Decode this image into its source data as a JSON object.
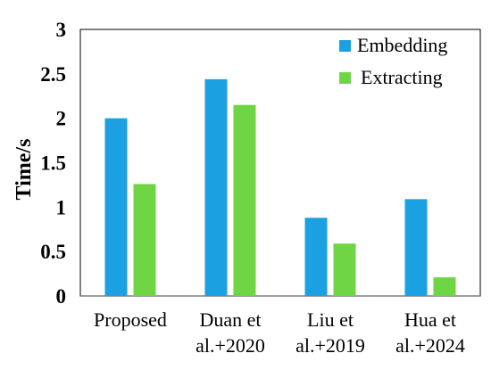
{
  "chart_data": {
    "type": "bar",
    "categories": [
      [
        "Proposed"
      ],
      [
        "Duan et",
        "al.+2020"
      ],
      [
        "Liu et",
        "al.+2019"
      ],
      [
        "Hua et",
        "al.+2024"
      ]
    ],
    "series": [
      {
        "name": "Embedding",
        "color": "#1BA1E2",
        "values": [
          2.0,
          2.44,
          0.88,
          1.09
        ]
      },
      {
        "name": "Extracting",
        "color": "#70D544",
        "values": [
          1.26,
          2.15,
          0.59,
          0.21
        ]
      }
    ],
    "title": "",
    "xlabel": "",
    "ylabel": "Time/s",
    "ylim": [
      0,
      3
    ],
    "yticks": [
      "0",
      "0.5",
      "1",
      "1.5",
      "2",
      "2.5",
      "3"
    ],
    "grid": false,
    "legend_position": "top-right"
  }
}
